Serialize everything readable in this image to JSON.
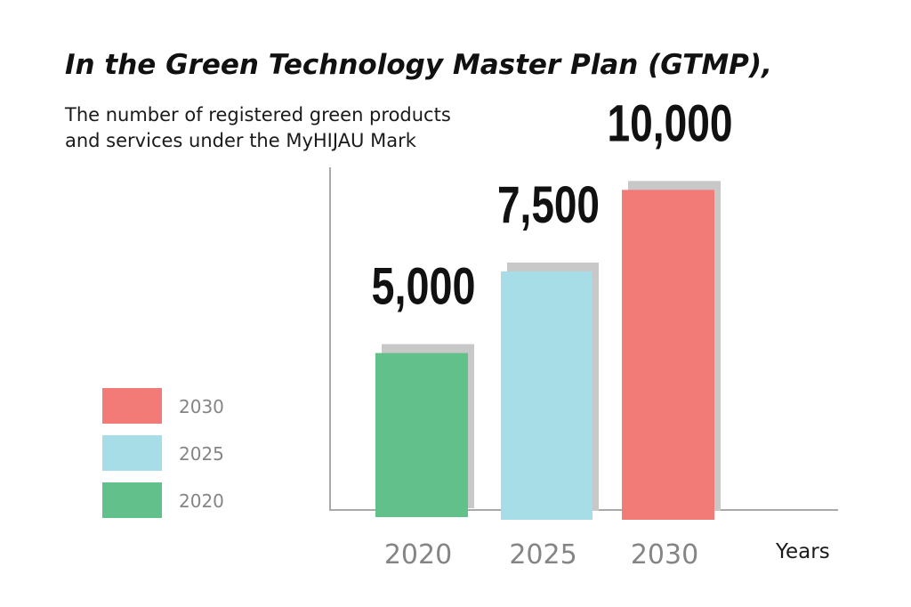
{
  "chart_data": {
    "type": "bar",
    "title": "In the Green Technology Master Plan (GTMP),",
    "subtitle_lines": [
      "The number of registered green products",
      "and services under the MyHIJAU Mark"
    ],
    "xlabel": "Years",
    "ylabel": "",
    "categories": [
      "2020",
      "2025",
      "2030"
    ],
    "values": [
      5000,
      7500,
      10000
    ],
    "value_labels": [
      "5,000",
      "7,500",
      "10,000"
    ],
    "ylim": [
      0,
      12000
    ],
    "grid": false,
    "legend": {
      "placement": "left",
      "entries": [
        "2030",
        "2025",
        "2020"
      ]
    },
    "colors": {
      "2020": "#62c18a",
      "2025": "#a6dde6",
      "2030": "#f27b78",
      "shadow": "#c8c8c8",
      "axis": "#a9a9a9"
    }
  }
}
